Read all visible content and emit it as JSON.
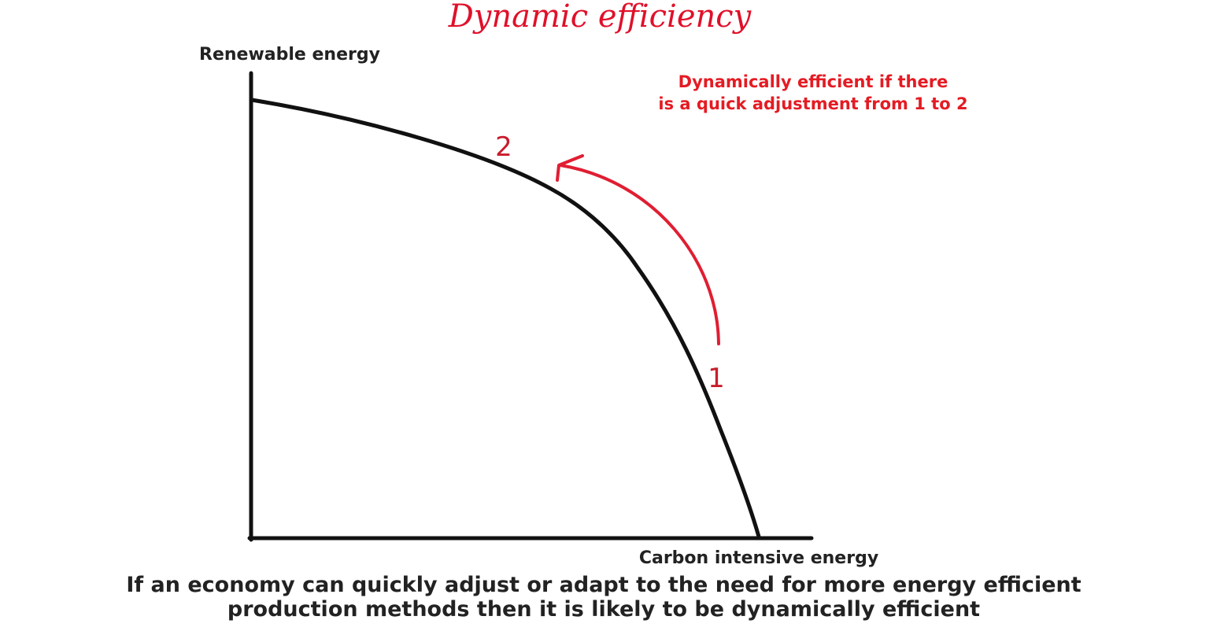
{
  "title": "Dynamic efficiency",
  "y_axis_label": "Renewable energy",
  "x_axis_label": "Carbon intensive energy",
  "annotation": {
    "line1": "Dynamically efficient if there",
    "line2": "is a quick adjustment from 1 to 2"
  },
  "points": {
    "point_1": "1",
    "point_2": "2"
  },
  "caption": {
    "line1": "If an economy can quickly adjust or adapt to the need for more energy efficient",
    "line2": "production methods then it is likely to be dynamically efficient"
  },
  "colors": {
    "title": "#e0102a",
    "annotation": "#e41b23",
    "arrow": "#e01e32",
    "axes": "#111111",
    "curve": "#111111"
  }
}
